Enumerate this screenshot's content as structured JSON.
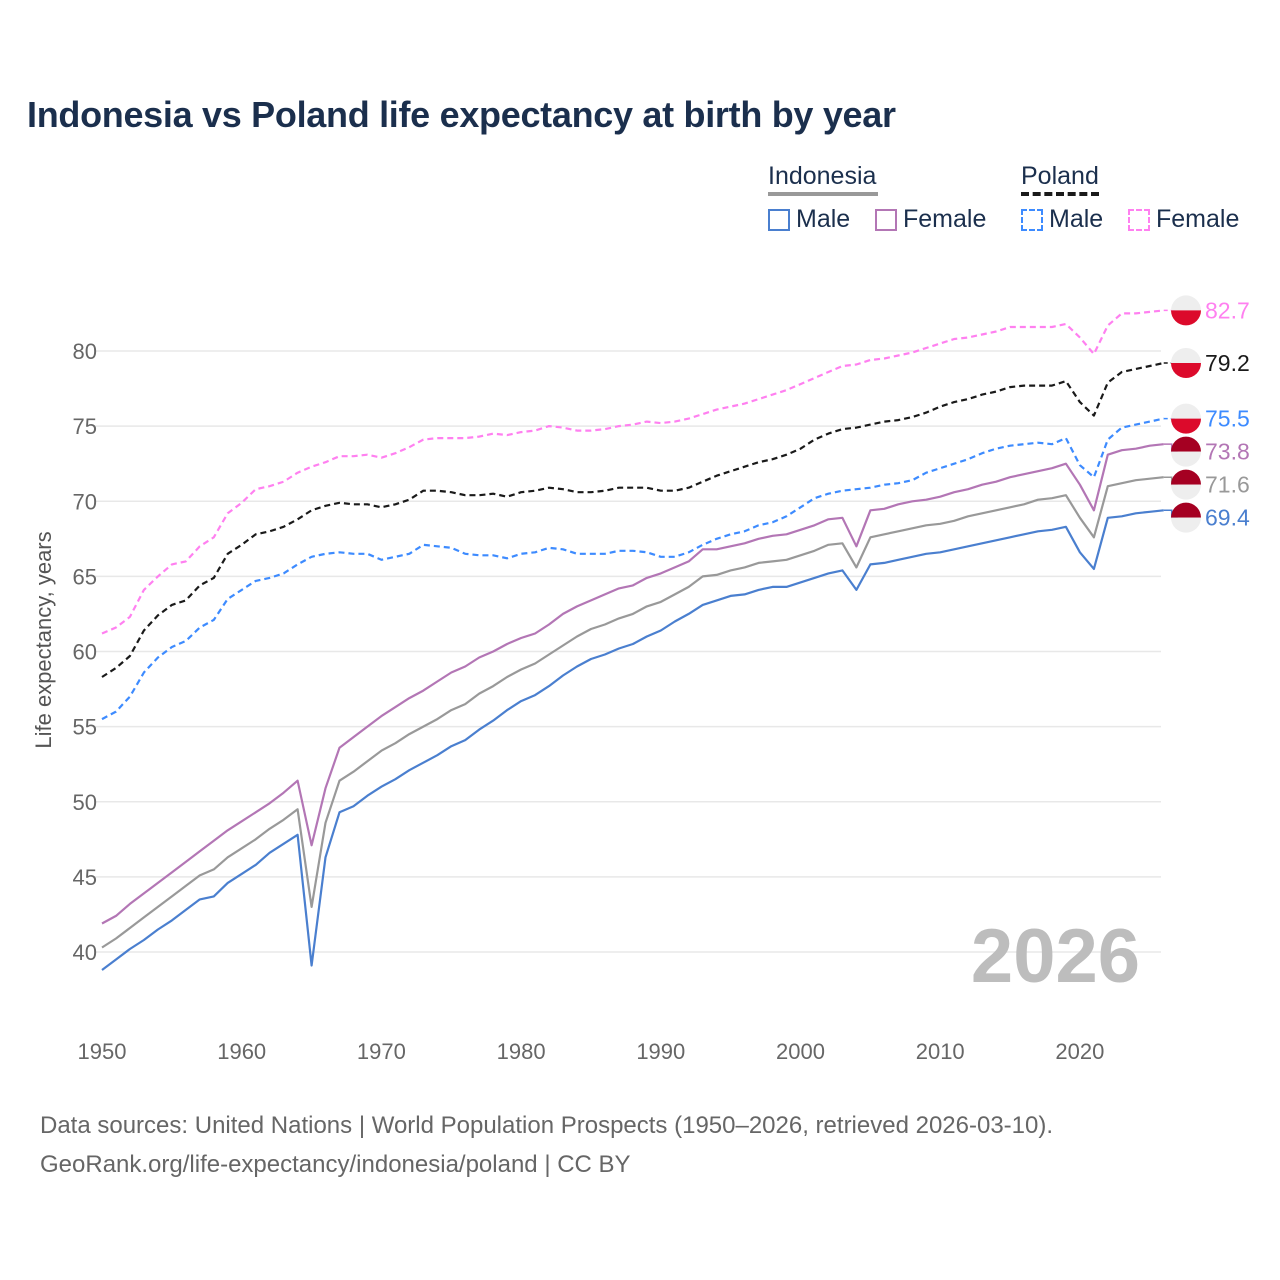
{
  "title": "Indonesia vs Poland life expectancy at birth by year",
  "legend": {
    "groups": [
      {
        "name": "Indonesia",
        "items": [
          "Male",
          "Female"
        ]
      },
      {
        "name": "Poland",
        "items": [
          "Male",
          "Female"
        ]
      }
    ]
  },
  "source": {
    "line1": "Data sources: United Nations | World Population Prospects (1950–2026, retrieved 2026-03-10).",
    "line2": "GeoRank.org/life-expectancy/indonesia/poland | CC BY"
  },
  "chart_data": {
    "type": "line",
    "title": "Indonesia vs Poland life expectancy at birth by year",
    "xlabel": "",
    "ylabel": "Life expectancy, years",
    "xlim": [
      1950,
      2026
    ],
    "ylim": [
      37,
      84
    ],
    "x_ticks": [
      1950,
      1960,
      1970,
      1980,
      1990,
      2000,
      2010,
      2020
    ],
    "y_ticks": [
      40,
      45,
      50,
      55,
      60,
      65,
      70,
      75,
      80
    ],
    "grid": true,
    "legend_position": "top-right",
    "year_watermark": "2026",
    "x_start": 1950,
    "series": [
      {
        "name": "Poland Female",
        "country": "Poland",
        "color": "#ff80f0",
        "dash": true,
        "end_label": "82.7",
        "flag": "poland",
        "values": [
          61.2,
          61.6,
          62.3,
          64.1,
          65.0,
          65.8,
          66.0,
          67.0,
          67.6,
          69.2,
          69.9,
          70.8,
          71.0,
          71.3,
          71.9,
          72.3,
          72.6,
          73.0,
          73.0,
          73.1,
          72.9,
          73.2,
          73.6,
          74.1,
          74.2,
          74.2,
          74.2,
          74.3,
          74.5,
          74.4,
          74.6,
          74.7,
          75.0,
          74.9,
          74.7,
          74.7,
          74.8,
          75.0,
          75.1,
          75.3,
          75.2,
          75.3,
          75.5,
          75.8,
          76.1,
          76.3,
          76.5,
          76.8,
          77.1,
          77.4,
          77.8,
          78.2,
          78.6,
          79.0,
          79.1,
          79.4,
          79.5,
          79.7,
          79.9,
          80.2,
          80.5,
          80.8,
          80.9,
          81.1,
          81.3,
          81.6,
          81.6,
          81.6,
          81.6,
          81.8,
          80.9,
          79.8,
          81.7,
          82.5,
          82.5,
          82.6,
          82.7
        ]
      },
      {
        "name": "Poland",
        "country": "Poland",
        "color": "#1a1a1a",
        "dash": true,
        "end_label": "79.2",
        "flag": "poland",
        "values": [
          58.3,
          58.9,
          59.7,
          61.4,
          62.4,
          63.1,
          63.4,
          64.4,
          64.9,
          66.5,
          67.1,
          67.8,
          68.0,
          68.3,
          68.8,
          69.4,
          69.7,
          69.9,
          69.8,
          69.8,
          69.6,
          69.8,
          70.1,
          70.7,
          70.7,
          70.6,
          70.4,
          70.4,
          70.5,
          70.3,
          70.6,
          70.7,
          70.9,
          70.8,
          70.6,
          70.6,
          70.7,
          70.9,
          70.9,
          70.9,
          70.7,
          70.7,
          70.9,
          71.3,
          71.7,
          72.0,
          72.3,
          72.6,
          72.8,
          73.1,
          73.5,
          74.1,
          74.5,
          74.8,
          74.9,
          75.1,
          75.3,
          75.4,
          75.6,
          75.9,
          76.3,
          76.6,
          76.8,
          77.1,
          77.3,
          77.6,
          77.7,
          77.7,
          77.7,
          78.0,
          76.6,
          75.7,
          77.9,
          78.6,
          78.8,
          79.0,
          79.2
        ]
      },
      {
        "name": "Poland Male",
        "country": "Poland",
        "color": "#3d8bff",
        "dash": true,
        "end_label": "75.5",
        "flag": "poland",
        "values": [
          55.5,
          56.0,
          57.0,
          58.6,
          59.6,
          60.3,
          60.7,
          61.6,
          62.1,
          63.5,
          64.1,
          64.7,
          64.9,
          65.2,
          65.8,
          66.3,
          66.5,
          66.6,
          66.5,
          66.5,
          66.1,
          66.3,
          66.5,
          67.1,
          67.0,
          66.9,
          66.5,
          66.4,
          66.4,
          66.2,
          66.5,
          66.6,
          66.9,
          66.8,
          66.5,
          66.5,
          66.5,
          66.7,
          66.7,
          66.6,
          66.3,
          66.3,
          66.6,
          67.1,
          67.5,
          67.8,
          68.0,
          68.4,
          68.6,
          69.0,
          69.6,
          70.2,
          70.5,
          70.7,
          70.8,
          70.9,
          71.1,
          71.2,
          71.4,
          71.9,
          72.2,
          72.5,
          72.8,
          73.2,
          73.5,
          73.7,
          73.8,
          73.9,
          73.8,
          74.2,
          72.4,
          71.6,
          74.1,
          74.9,
          75.1,
          75.3,
          75.5
        ]
      },
      {
        "name": "Indonesia Female",
        "country": "Indonesia",
        "color": "#b376b5",
        "dash": false,
        "end_label": "73.8",
        "flag": "indonesia",
        "values": [
          41.9,
          42.4,
          43.2,
          43.9,
          44.6,
          45.3,
          46.0,
          46.7,
          47.4,
          48.1,
          48.7,
          49.3,
          49.9,
          50.6,
          51.4,
          47.1,
          50.9,
          53.6,
          54.3,
          55.0,
          55.7,
          56.3,
          56.9,
          57.4,
          58.0,
          58.6,
          59.0,
          59.6,
          60.0,
          60.5,
          60.9,
          61.2,
          61.8,
          62.5,
          63.0,
          63.4,
          63.8,
          64.2,
          64.4,
          64.9,
          65.2,
          65.6,
          66.0,
          66.8,
          66.8,
          67.0,
          67.2,
          67.5,
          67.7,
          67.8,
          68.1,
          68.4,
          68.8,
          68.9,
          67.0,
          69.4,
          69.5,
          69.8,
          70.0,
          70.1,
          70.3,
          70.6,
          70.8,
          71.1,
          71.3,
          71.6,
          71.8,
          72.0,
          72.2,
          72.5,
          71.1,
          69.4,
          73.1,
          73.4,
          73.5,
          73.7,
          73.8
        ]
      },
      {
        "name": "Indonesia",
        "country": "Indonesia",
        "color": "#999999",
        "dash": false,
        "end_label": "71.6",
        "flag": "indonesia",
        "values": [
          40.3,
          40.9,
          41.6,
          42.3,
          43.0,
          43.7,
          44.4,
          45.1,
          45.5,
          46.3,
          46.9,
          47.5,
          48.2,
          48.8,
          49.5,
          43.0,
          48.6,
          51.4,
          52.0,
          52.7,
          53.4,
          53.9,
          54.5,
          55.0,
          55.5,
          56.1,
          56.5,
          57.2,
          57.7,
          58.3,
          58.8,
          59.2,
          59.8,
          60.4,
          61.0,
          61.5,
          61.8,
          62.2,
          62.5,
          63.0,
          63.3,
          63.8,
          64.3,
          65.0,
          65.1,
          65.4,
          65.6,
          65.9,
          66.0,
          66.1,
          66.4,
          66.7,
          67.1,
          67.2,
          65.6,
          67.6,
          67.8,
          68.0,
          68.2,
          68.4,
          68.5,
          68.7,
          69.0,
          69.2,
          69.4,
          69.6,
          69.8,
          70.1,
          70.2,
          70.4,
          68.9,
          67.6,
          71.0,
          71.2,
          71.4,
          71.5,
          71.6
        ]
      },
      {
        "name": "Indonesia Male",
        "country": "Indonesia",
        "color": "#4a7fcf",
        "dash": false,
        "end_label": "69.4",
        "flag": "indonesia",
        "values": [
          38.8,
          39.5,
          40.2,
          40.8,
          41.5,
          42.1,
          42.8,
          43.5,
          43.7,
          44.6,
          45.2,
          45.8,
          46.6,
          47.2,
          47.8,
          39.1,
          46.3,
          49.3,
          49.7,
          50.4,
          51.0,
          51.5,
          52.1,
          52.6,
          53.1,
          53.7,
          54.1,
          54.8,
          55.4,
          56.1,
          56.7,
          57.1,
          57.7,
          58.4,
          59.0,
          59.5,
          59.8,
          60.2,
          60.5,
          61.0,
          61.4,
          62.0,
          62.5,
          63.1,
          63.4,
          63.7,
          63.8,
          64.1,
          64.3,
          64.3,
          64.6,
          64.9,
          65.2,
          65.4,
          64.1,
          65.8,
          65.9,
          66.1,
          66.3,
          66.5,
          66.6,
          66.8,
          67.0,
          67.2,
          67.4,
          67.6,
          67.8,
          68.0,
          68.1,
          68.3,
          66.6,
          65.5,
          68.9,
          69.0,
          69.2,
          69.3,
          69.4
        ]
      }
    ]
  },
  "colors": {
    "title": "#1b2f4d",
    "poland_red": "#dc0a2b",
    "indonesia_red": "#a50022",
    "flag_white": "#eeeeee",
    "watermark": "#bdbdbd"
  }
}
